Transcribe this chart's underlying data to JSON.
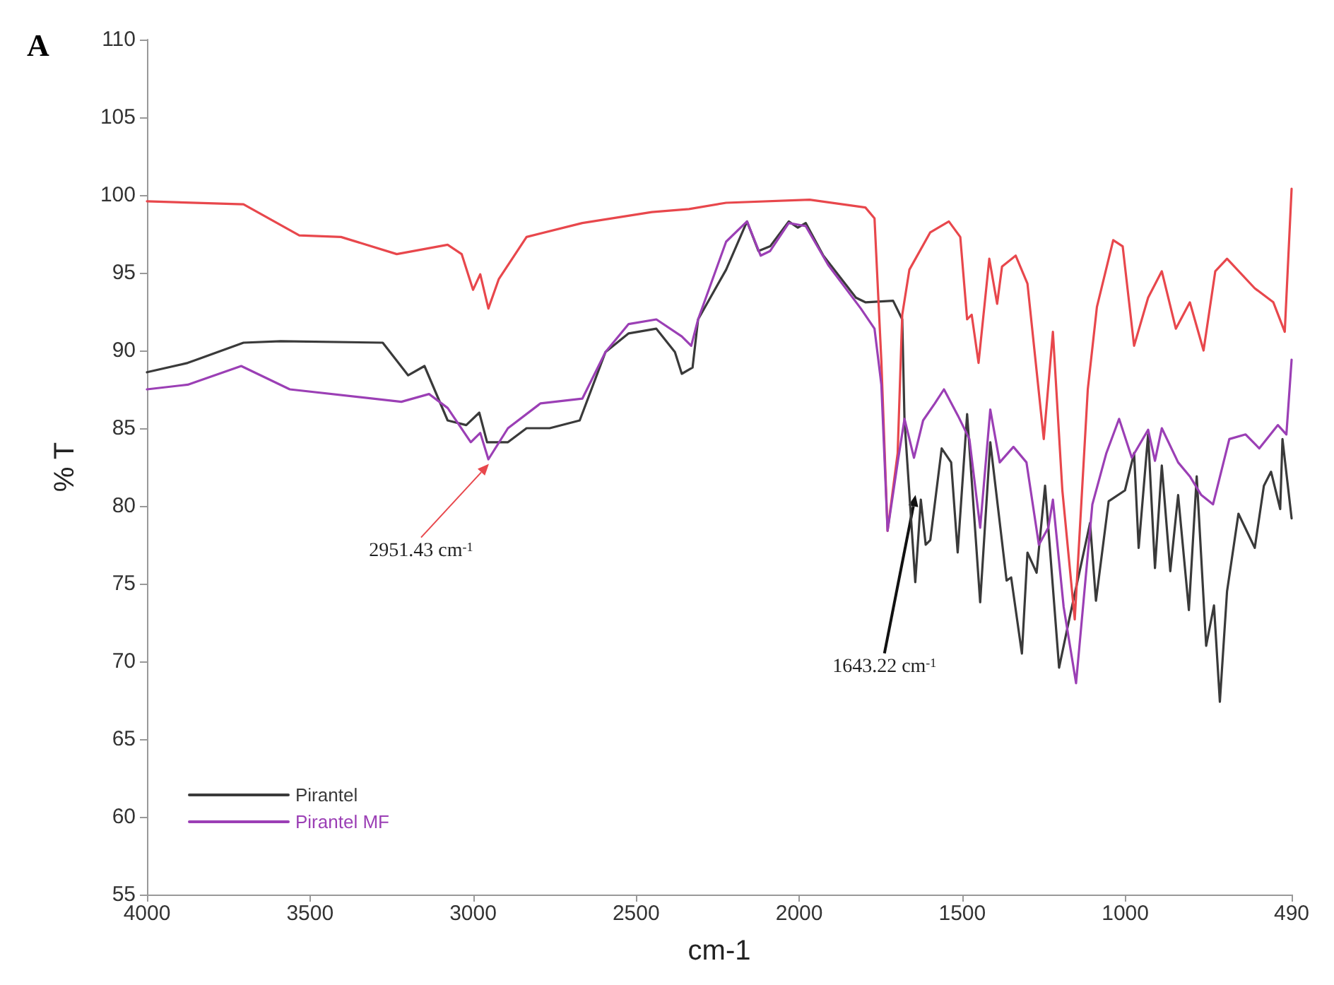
{
  "chart_data": {
    "type": "line",
    "title": "A",
    "xlabel": "cm-1",
    "ylabel": "% T",
    "xlim": [
      4000,
      490
    ],
    "xticks": [
      4000,
      3500,
      3000,
      2500,
      2000,
      1500,
      1000,
      490
    ],
    "ylim": [
      55,
      110
    ],
    "yticks": [
      55,
      60,
      65,
      70,
      75,
      80,
      85,
      90,
      95,
      100,
      105,
      110
    ],
    "grid": false,
    "legend": "bottom left",
    "annotations": [
      {
        "text": "2951.43 cm$^{-1}$",
        "x": 2951.43,
        "y": 82.7
      },
      {
        "text": "1643.22 cm$^{-1}$",
        "x": 1643.22,
        "y": 80.7
      }
    ],
    "series": [
      {
        "name": "Pirantel",
        "color": "#3a3a3a",
        "x": [
          4000,
          3875,
          3704,
          3590,
          3277,
          3199,
          3149,
          3078,
          3021,
          2981,
          2957,
          2893,
          2836,
          2765,
          2673,
          2594,
          2523,
          2438,
          2381,
          2360,
          2327,
          2310,
          2224,
          2160,
          2125,
          2089,
          2032,
          2004,
          1980,
          1926,
          1826,
          1797,
          1712,
          1684,
          1677,
          1644,
          1627,
          1612,
          1598,
          1563,
          1534,
          1514,
          1485,
          1445,
          1414,
          1364,
          1350,
          1317,
          1300,
          1272,
          1246,
          1203,
          1172,
          1108,
          1090,
          1051,
          1001,
          973,
          959,
          930,
          909,
          888,
          862,
          838,
          805,
          781,
          752,
          728,
          710,
          688,
          653,
          603,
          575,
          553,
          525,
          518,
          490
        ],
        "values": [
          88.6,
          89.2,
          90.5,
          90.6,
          90.5,
          88.4,
          89.0,
          85.5,
          85.2,
          86.0,
          84.1,
          84.1,
          85.0,
          85.0,
          85.5,
          89.9,
          91.1,
          91.4,
          89.9,
          88.5,
          88.9,
          92.0,
          95.2,
          98.3,
          96.4,
          96.7,
          98.3,
          97.9,
          98.2,
          96.1,
          93.4,
          93.1,
          93.2,
          92.0,
          85.5,
          75.1,
          80.4,
          77.5,
          77.8,
          83.7,
          82.8,
          77.0,
          85.9,
          73.8,
          84.1,
          75.2,
          75.4,
          70.5,
          77.0,
          75.7,
          81.3,
          69.6,
          72.7,
          78.9,
          73.9,
          80.3,
          81.0,
          83.4,
          77.3,
          84.6,
          76.0,
          82.6,
          75.8,
          80.7,
          73.3,
          81.9,
          71.0,
          73.6,
          67.4,
          74.5,
          79.5,
          77.3,
          81.3,
          82.2,
          79.8,
          84.3,
          79.2
        ]
      },
      {
        "color": "#e8474c",
        "x": [
          4000,
          3704,
          3533,
          3405,
          3234,
          3078,
          3035,
          3000,
          2978,
          2953,
          2921,
          2836,
          2665,
          2452,
          2338,
          2224,
          1968,
          1797,
          1769,
          1748,
          1729,
          1698,
          1684,
          1662,
          1598,
          1541,
          1506,
          1485,
          1471,
          1450,
          1417,
          1393,
          1378,
          1336,
          1300,
          1250,
          1222,
          1193,
          1155,
          1115,
          1087,
          1037,
          1008,
          973,
          930,
          888,
          845,
          802,
          760,
          724,
          688,
          603,
          546,
          511,
          490
        ],
        "values": [
          99.6,
          99.4,
          97.4,
          97.3,
          96.2,
          96.8,
          96.2,
          93.9,
          94.9,
          92.7,
          94.6,
          97.3,
          98.2,
          98.9,
          99.1,
          99.5,
          99.7,
          99.2,
          98.5,
          89.3,
          78.4,
          83.4,
          92.3,
          95.2,
          97.6,
          98.3,
          97.3,
          92.0,
          92.3,
          89.2,
          95.9,
          93.0,
          95.4,
          96.1,
          94.3,
          84.3,
          91.2,
          81.0,
          72.7,
          87.5,
          92.8,
          97.1,
          96.7,
          90.3,
          93.4,
          95.1,
          91.4,
          93.1,
          90.0,
          95.1,
          95.9,
          94.0,
          93.1,
          91.2,
          100.4
        ]
      },
      {
        "name": "Pirantel MF",
        "color": "#9b3fb5",
        "x": [
          4000,
          3875,
          3711,
          3562,
          3220,
          3135,
          3078,
          3007,
          2978,
          2953,
          2893,
          2793,
          2665,
          2594,
          2523,
          2438,
          2360,
          2331,
          2310,
          2224,
          2160,
          2118,
          2089,
          2032,
          1980,
          1911,
          1811,
          1769,
          1748,
          1729,
          1698,
          1677,
          1648,
          1620,
          1584,
          1556,
          1513,
          1478,
          1445,
          1414,
          1385,
          1343,
          1303,
          1265,
          1236,
          1222,
          1189,
          1151,
          1101,
          1058,
          1019,
          980,
          930,
          909,
          888,
          838,
          802,
          767,
          731,
          681,
          631,
          589,
          532,
          506,
          490
        ],
        "values": [
          87.5,
          87.8,
          89.0,
          87.5,
          86.7,
          87.2,
          86.3,
          84.1,
          84.7,
          83.0,
          85.0,
          86.6,
          86.9,
          89.9,
          91.7,
          92.0,
          90.9,
          90.3,
          92.0,
          97.0,
          98.3,
          96.1,
          96.4,
          98.2,
          98.0,
          95.5,
          92.7,
          91.4,
          87.8,
          78.4,
          82.8,
          85.6,
          83.1,
          85.5,
          86.6,
          87.5,
          85.8,
          84.3,
          78.6,
          86.2,
          82.8,
          83.8,
          82.8,
          77.5,
          78.6,
          80.4,
          73.5,
          68.6,
          80.1,
          83.4,
          85.6,
          83.1,
          84.9,
          82.9,
          85.0,
          82.8,
          81.9,
          80.7,
          80.1,
          84.3,
          84.6,
          83.7,
          85.2,
          84.6,
          89.4
        ]
      }
    ]
  }
}
